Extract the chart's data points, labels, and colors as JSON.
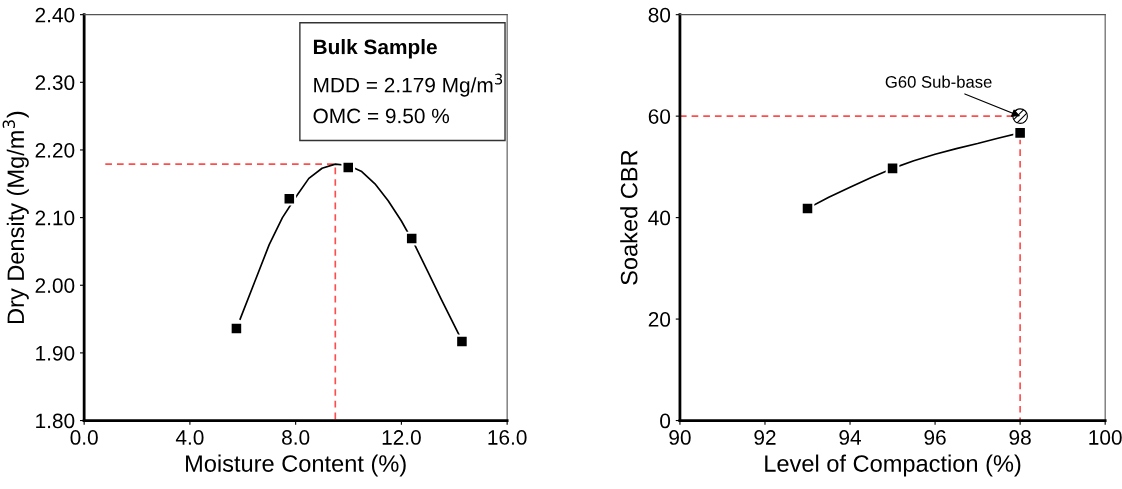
{
  "chart_data": [
    {
      "type": "scatter",
      "xlabel": "Moisture Content (%)",
      "ylabel": "Dry Density (Mg/m$^{3}$)",
      "xlim": [
        0,
        16
      ],
      "ylim": [
        1.8,
        2.4
      ],
      "xticks": [
        {
          "value": 0,
          "label": "0.0"
        },
        {
          "value": 4,
          "label": "4.0"
        },
        {
          "value": 8,
          "label": "8.0"
        },
        {
          "value": 12,
          "label": "12.0"
        },
        {
          "value": 16,
          "label": "16.0"
        }
      ],
      "yticks": [
        {
          "value": 1.8,
          "label": "1.80"
        },
        {
          "value": 1.9,
          "label": "1.90"
        },
        {
          "value": 2.0,
          "label": "2.00"
        },
        {
          "value": 2.1,
          "label": "2.10"
        },
        {
          "value": 2.2,
          "label": "2.20"
        },
        {
          "value": 2.3,
          "label": "2.30"
        },
        {
          "value": 2.4,
          "label": "2.40"
        }
      ],
      "grid": false,
      "legend": false,
      "annotations": [
        "Bulk Sample",
        "MDD = 2.179 Mg/m$^{3}$",
        "OMC = 9.50 %"
      ],
      "series": [
        {
          "type": "line",
          "color": "#ff4d4d",
          "line_style": "dashed",
          "marker": "none",
          "x": [
            0.8,
            9.5,
            9.5
          ],
          "values": [
            2.179,
            2.179,
            1.8
          ]
        },
        {
          "type": "line",
          "color": "#000000",
          "line_style": "solid",
          "marker": "none",
          "x": [
            5.9,
            6.5,
            7.0,
            7.5,
            8.0,
            8.5,
            9.0,
            9.5,
            10.0,
            10.5,
            11.0,
            11.5,
            12.0,
            12.5,
            13.0,
            13.5,
            14.2
          ],
          "values": [
            1.95,
            2.01,
            2.06,
            2.1,
            2.13,
            2.158,
            2.173,
            2.179,
            2.177,
            2.168,
            2.15,
            2.125,
            2.095,
            2.06,
            2.02,
            1.98,
            1.925
          ]
        },
        {
          "color": "#000000",
          "marker": "square",
          "x": [
            5.76,
            7.76,
            9.99,
            12.39,
            14.29
          ],
          "values": [
            1.936,
            2.128,
            2.174,
            2.069,
            1.917
          ]
        }
      ]
    },
    {
      "type": "scatter",
      "xlabel": "Level of Compaction (%)",
      "ylabel": "Soaked CBR",
      "xlim": [
        90,
        100
      ],
      "ylim": [
        0,
        80
      ],
      "xticks": [
        90,
        92,
        94,
        96,
        98,
        100
      ],
      "yticks": [
        0,
        20,
        40,
        60,
        80
      ],
      "grid": false,
      "legend": false,
      "annotations": [
        {
          "text": "G60 Sub-base",
          "x": 98,
          "y": 60
        }
      ],
      "series": [
        {
          "type": "line",
          "color": "#ff4d4d",
          "line_style": "dashed",
          "marker": "none",
          "x": [
            90,
            98,
            98
          ],
          "values": [
            60,
            60,
            0
          ]
        },
        {
          "type": "line",
          "color": "#000000",
          "line_style": "solid",
          "marker": "none",
          "x": [
            93.0,
            93.5,
            94.0,
            94.5,
            95.0,
            95.5,
            96.0,
            96.5,
            97.0,
            97.5,
            98.0
          ],
          "values": [
            41.8,
            44.0,
            46.0,
            47.9,
            49.7,
            51.2,
            52.5,
            53.6,
            54.6,
            55.7,
            56.7
          ]
        },
        {
          "color": "#000000",
          "marker": "square",
          "x": [
            93,
            95,
            98
          ],
          "values": [
            41.8,
            49.7,
            56.7
          ]
        },
        {
          "color": "#000000",
          "marker": "circle",
          "x": [
            98
          ],
          "values": [
            60
          ]
        }
      ]
    }
  ]
}
